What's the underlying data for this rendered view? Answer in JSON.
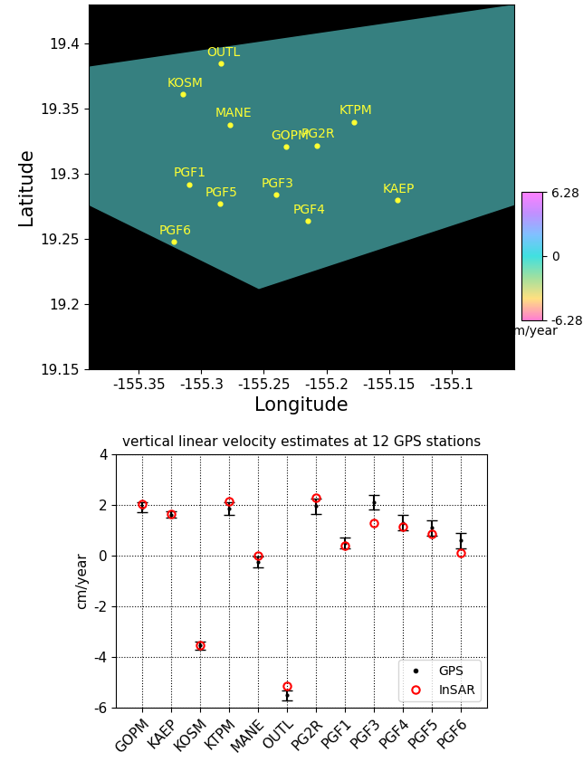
{
  "chart_data": [
    {
      "type": "map",
      "xlabel": "Longitude",
      "ylabel": "Latitude",
      "xlim": [
        -155.39,
        -155.05
      ],
      "ylim": [
        19.15,
        19.43
      ],
      "xticks": [
        -155.35,
        -155.3,
        -155.25,
        -155.2,
        -155.15,
        -155.1
      ],
      "yticks": [
        19.15,
        19.2,
        19.25,
        19.3,
        19.35,
        19.4
      ],
      "categories": [
        "OUTL",
        "KOSM",
        "MANE",
        "GOPM",
        "PG2R",
        "KTPM",
        "PGF1",
        "PGF5",
        "PGF3",
        "PGF4",
        "KAEP",
        "PGF6"
      ],
      "x": [
        -155.284,
        -155.315,
        -155.277,
        -155.232,
        -155.208,
        -155.178,
        -155.31,
        -155.285,
        -155.24,
        -155.215,
        -155.143,
        -155.322
      ],
      "y": [
        19.385,
        19.361,
        19.338,
        19.321,
        19.322,
        19.34,
        19.292,
        19.277,
        19.284,
        19.264,
        19.28,
        19.248
      ],
      "color": "#ffff33",
      "colorbar": {
        "range": [
          -6.28,
          6.28
        ],
        "ticks": [
          -6.28,
          0,
          6.28
        ],
        "label": "cm/year"
      }
    },
    {
      "type": "errorbar",
      "title": "vertical linear velocity estimates at 12 GPS stations",
      "ylabel": "cm/year",
      "categories": [
        "GOPM",
        "KAEP",
        "KOSM",
        "KTPM",
        "MANE",
        "OUTL",
        "PG2R",
        "PGF1",
        "PGF3",
        "PGF4",
        "PGF5",
        "PGF6"
      ],
      "series": [
        {
          "name": "GPS",
          "color": "black",
          "marker": "point",
          "values": [
            1.9,
            1.62,
            -3.55,
            1.85,
            -0.25,
            -5.5,
            1.95,
            0.5,
            2.1,
            1.3,
            1.1,
            0.6
          ],
          "errors": [
            0.2,
            0.12,
            0.15,
            0.25,
            0.2,
            0.2,
            0.3,
            0.2,
            0.3,
            0.3,
            0.3,
            0.3
          ]
        },
        {
          "name": "InSAR",
          "color": "red",
          "marker": "circle",
          "values": [
            2.02,
            1.65,
            -3.55,
            2.15,
            0.0,
            -5.15,
            2.28,
            0.38,
            1.27,
            1.15,
            0.85,
            0.12
          ]
        }
      ],
      "xlim": [
        -0.9,
        11.9
      ],
      "ylim": [
        -6,
        4
      ],
      "yticks": [
        -6,
        -4,
        -2,
        0,
        2,
        4
      ],
      "grid": true,
      "legend": "lower right"
    }
  ]
}
